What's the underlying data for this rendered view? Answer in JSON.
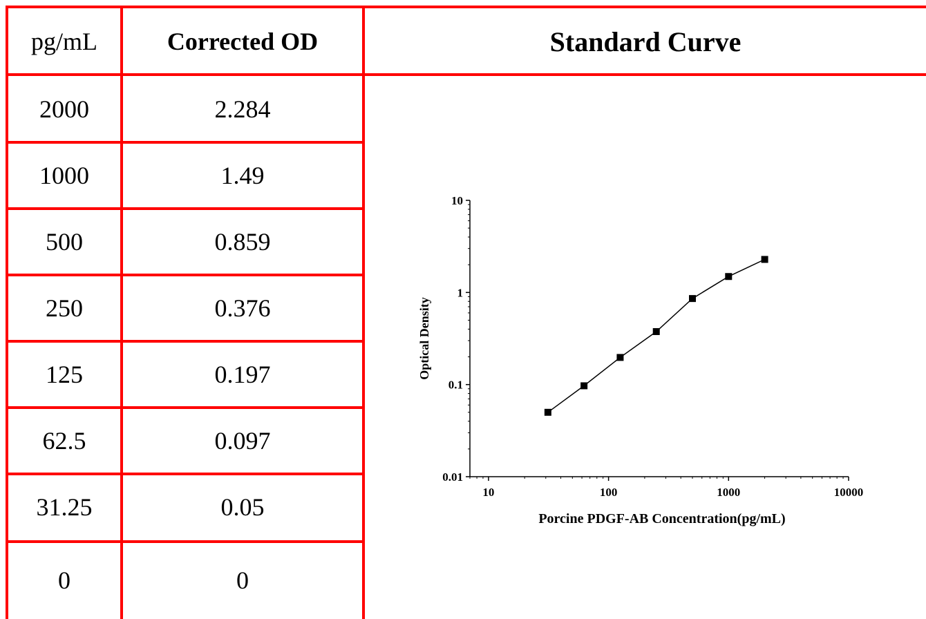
{
  "table": {
    "headers": {
      "conc": "pg/mL",
      "od": "Corrected OD"
    },
    "rows": [
      {
        "conc": "2000",
        "od": "2.284"
      },
      {
        "conc": "1000",
        "od": "1.49"
      },
      {
        "conc": "500",
        "od": "0.859"
      },
      {
        "conc": "250",
        "od": "0.376"
      },
      {
        "conc": "125",
        "od": "0.197"
      },
      {
        "conc": "62.5",
        "od": "0.097"
      },
      {
        "conc": "31.25",
        "od": "0.05"
      },
      {
        "conc": "0",
        "od": "0"
      }
    ]
  },
  "panel": {
    "title": "Standard Curve"
  },
  "colors": {
    "grid_line": "#ff0000",
    "marker": "#000000",
    "line": "#000000"
  },
  "chart_data": {
    "type": "line",
    "title": "",
    "xlabel": "Porcine PDGF-AB Concentration(pg/mL)",
    "ylabel": "Optical Density",
    "xscale": "log",
    "yscale": "log",
    "xlim": [
      7,
      10000
    ],
    "ylim": [
      0.01,
      10
    ],
    "x_ticks": [
      10,
      100,
      1000,
      10000
    ],
    "x_tick_labels": [
      "10",
      "100",
      "1000",
      "10000"
    ],
    "y_ticks": [
      0.01,
      0.1,
      1,
      10
    ],
    "y_tick_labels": [
      "0.01",
      "0.1",
      "1",
      "10"
    ],
    "grid": false,
    "marker": "square",
    "series": [
      {
        "x": [
          31.25,
          62.5,
          125,
          250,
          500,
          1000,
          2000
        ],
        "y": [
          0.05,
          0.097,
          0.197,
          0.376,
          0.859,
          1.49,
          2.284
        ]
      }
    ]
  }
}
